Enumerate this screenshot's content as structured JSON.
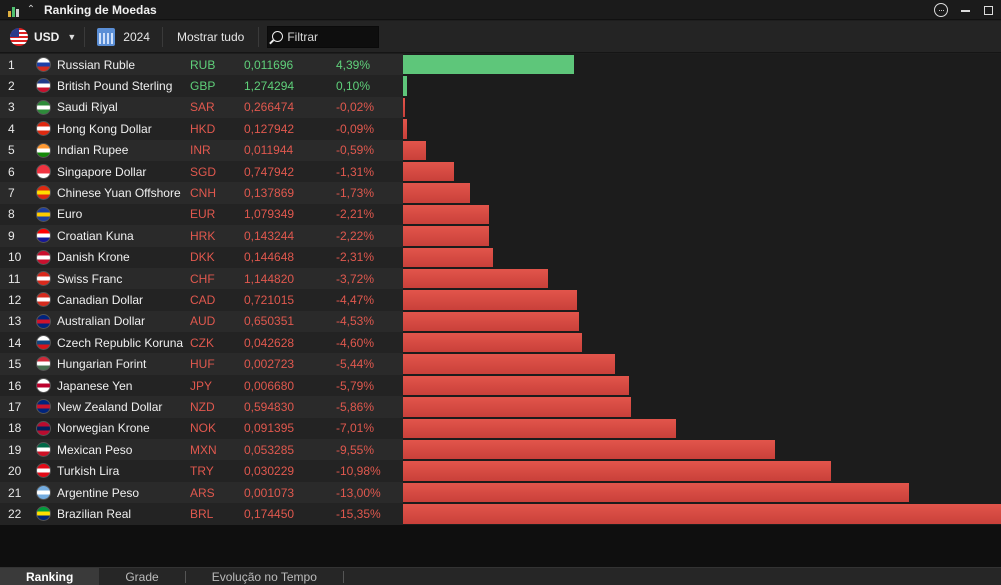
{
  "window": {
    "title": "Ranking de Moedas"
  },
  "toolbar": {
    "currency": "USD",
    "year": "2024",
    "show_all": "Mostrar tudo",
    "filter_placeholder": "Filtrar"
  },
  "chart_data": {
    "type": "bar",
    "title": "",
    "xlabel": "",
    "ylabel": "",
    "orientation": "horizontal",
    "max_abs_pct": 15.35,
    "rows": [
      {
        "rank": "1",
        "name": "Russian Ruble",
        "code": "RUB",
        "rate": "0,011696",
        "pct": "4,39%",
        "value": 4.39,
        "flag_colors": [
          "#ffffff",
          "#1c3fa8",
          "#d52b1e"
        ]
      },
      {
        "rank": "2",
        "name": "British Pound Sterling",
        "code": "GBP",
        "rate": "1,274294",
        "pct": "0,10%",
        "value": 0.1,
        "flag_colors": [
          "#1f3a8a",
          "#ffffff",
          "#c8102e"
        ]
      },
      {
        "rank": "3",
        "name": "Saudi Riyal",
        "code": "SAR",
        "rate": "0,266474",
        "pct": "-0,02%",
        "value": -0.02,
        "flag_colors": [
          "#2e8b3a",
          "#ffffff",
          "#2e8b3a"
        ]
      },
      {
        "rank": "4",
        "name": "Hong Kong Dollar",
        "code": "HKD",
        "rate": "0,127942",
        "pct": "-0,09%",
        "value": -0.09,
        "flag_colors": [
          "#de2910",
          "#ffffff",
          "#de2910"
        ]
      },
      {
        "rank": "5",
        "name": "Indian Rupee",
        "code": "INR",
        "rate": "0,011944",
        "pct": "-0,59%",
        "value": -0.59,
        "flag_colors": [
          "#ff9933",
          "#ffffff",
          "#138808"
        ]
      },
      {
        "rank": "6",
        "name": "Singapore Dollar",
        "code": "SGD",
        "rate": "0,747942",
        "pct": "-1,31%",
        "value": -1.31,
        "flag_colors": [
          "#ef3340",
          "#ef3340",
          "#ffffff"
        ]
      },
      {
        "rank": "7",
        "name": "Chinese Yuan Offshore",
        "code": "CNH",
        "rate": "0,137869",
        "pct": "-1,73%",
        "value": -1.73,
        "flag_colors": [
          "#de2910",
          "#ffde00",
          "#de2910"
        ]
      },
      {
        "rank": "8",
        "name": "Euro",
        "code": "EUR",
        "rate": "1,079349",
        "pct": "-2,21%",
        "value": -2.21,
        "flag_colors": [
          "#1f3fa0",
          "#ffcc00",
          "#1f3fa0"
        ]
      },
      {
        "rank": "9",
        "name": "Croatian Kuna",
        "code": "HRK",
        "rate": "0,143244",
        "pct": "-2,22%",
        "value": -2.22,
        "flag_colors": [
          "#ff0000",
          "#ffffff",
          "#171796"
        ]
      },
      {
        "rank": "10",
        "name": "Danish Krone",
        "code": "DKK",
        "rate": "0,144648",
        "pct": "-2,31%",
        "value": -2.31,
        "flag_colors": [
          "#c8102e",
          "#ffffff",
          "#c8102e"
        ]
      },
      {
        "rank": "11",
        "name": "Swiss Franc",
        "code": "CHF",
        "rate": "1,144820",
        "pct": "-3,72%",
        "value": -3.72,
        "flag_colors": [
          "#da291c",
          "#ffffff",
          "#da291c"
        ]
      },
      {
        "rank": "12",
        "name": "Canadian Dollar",
        "code": "CAD",
        "rate": "0,721015",
        "pct": "-4,47%",
        "value": -4.47,
        "flag_colors": [
          "#d52b1e",
          "#ffffff",
          "#d52b1e"
        ]
      },
      {
        "rank": "13",
        "name": "Australian Dollar",
        "code": "AUD",
        "rate": "0,650351",
        "pct": "-4,53%",
        "value": -4.53,
        "flag_colors": [
          "#00247d",
          "#cf142b",
          "#00247d"
        ]
      },
      {
        "rank": "14",
        "name": "Czech Republic Koruna",
        "code": "CZK",
        "rate": "0,042628",
        "pct": "-4,60%",
        "value": -4.6,
        "flag_colors": [
          "#ffffff",
          "#11457e",
          "#d7141a"
        ]
      },
      {
        "rank": "15",
        "name": "Hungarian Forint",
        "code": "HUF",
        "rate": "0,002723",
        "pct": "-5,44%",
        "value": -5.44,
        "flag_colors": [
          "#ce2939",
          "#ffffff",
          "#477050"
        ]
      },
      {
        "rank": "16",
        "name": "Japanese Yen",
        "code": "JPY",
        "rate": "0,006680",
        "pct": "-5,79%",
        "value": -5.79,
        "flag_colors": [
          "#ffffff",
          "#bc002d",
          "#ffffff"
        ]
      },
      {
        "rank": "17",
        "name": "New Zealand Dollar",
        "code": "NZD",
        "rate": "0,594830",
        "pct": "-5,86%",
        "value": -5.86,
        "flag_colors": [
          "#00247d",
          "#cc142b",
          "#00247d"
        ]
      },
      {
        "rank": "18",
        "name": "Norwegian Krone",
        "code": "NOK",
        "rate": "0,091395",
        "pct": "-7,01%",
        "value": -7.01,
        "flag_colors": [
          "#ba0c2f",
          "#00205b",
          "#ba0c2f"
        ]
      },
      {
        "rank": "19",
        "name": "Mexican Peso",
        "code": "MXN",
        "rate": "0,053285",
        "pct": "-9,55%",
        "value": -9.55,
        "flag_colors": [
          "#006847",
          "#ffffff",
          "#ce1126"
        ]
      },
      {
        "rank": "20",
        "name": "Turkish Lira",
        "code": "TRY",
        "rate": "0,030229",
        "pct": "-10,98%",
        "value": -10.98,
        "flag_colors": [
          "#e30a17",
          "#ffffff",
          "#e30a17"
        ]
      },
      {
        "rank": "21",
        "name": "Argentine Peso",
        "code": "ARS",
        "rate": "0,001073",
        "pct": "-13,00%",
        "value": -13.0,
        "flag_colors": [
          "#74acdf",
          "#ffffff",
          "#74acdf"
        ]
      },
      {
        "rank": "22",
        "name": "Brazilian Real",
        "code": "BRL",
        "rate": "0,174450",
        "pct": "-15,35%",
        "value": -15.35,
        "flag_colors": [
          "#009c3b",
          "#ffdf00",
          "#002776"
        ]
      }
    ]
  },
  "tabs": [
    {
      "label": "Ranking"
    },
    {
      "label": "Grade"
    },
    {
      "label": "Evolução no Tempo"
    }
  ],
  "colors": {
    "positive": "#5ec67a",
    "negative": "#e2554b"
  }
}
